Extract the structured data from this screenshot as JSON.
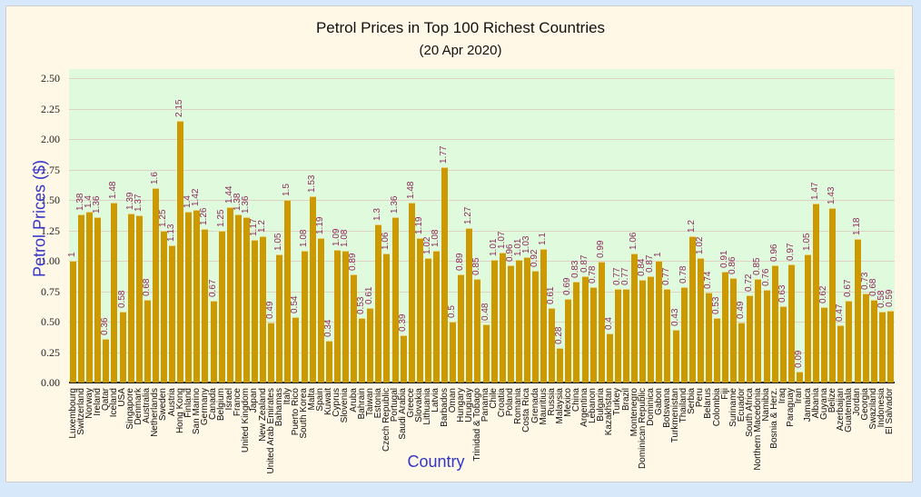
{
  "chart_data": {
    "type": "bar",
    "title": "Petrol Prices in Top 100 Richest Countries",
    "subtitle": "(20 Apr 2020)",
    "xlabel": "Country",
    "ylabel": "Petrol Prices ($)",
    "ylim": [
      0,
      2.5
    ],
    "yticks": [
      "0.00",
      "0.25",
      "0.50",
      "0.75",
      "1.00",
      "1.25",
      "1.50",
      "1.75",
      "2.00",
      "2.25",
      "2.50"
    ],
    "grid": true,
    "legend": "none",
    "bar_color": "#cc9900",
    "value_label_color": "#8e2a5e",
    "axis_title_color": "#3535c8",
    "plot_background": "#dffadc",
    "categories": [
      "Luxembourg",
      "Switzerland",
      "Norway",
      "Ireland",
      "Qatar",
      "Iceland",
      "USA",
      "Singapore",
      "Denmark",
      "Australia",
      "Netherlands",
      "Sweden",
      "Austria",
      "Hong Kong",
      "Finland",
      "San Marino",
      "Germany",
      "Canada",
      "Belgium",
      "Israel",
      "France",
      "United Kingdom",
      "Japan",
      "New Zealand",
      "United Arab Emirates",
      "Bahamas",
      "Italy",
      "Puerto Rico",
      "South Korea",
      "Malta",
      "Spain",
      "Kuwait",
      "Cyprus",
      "Slovenia",
      "Aruba",
      "Bahrain",
      "Taiwan",
      "Estonia",
      "Czech Republic",
      "Portugal",
      "Saudi Arabia",
      "Greece",
      "Slovakia",
      "Lithuania",
      "Latvia",
      "Barbados",
      "Oman",
      "Hungary",
      "Uruguay",
      "Trinidad & Tobago",
      "Panama",
      "Chile",
      "Croatia",
      "Poland",
      "Romania",
      "Costa Rica",
      "Grenada",
      "Mauritius",
      "Russia",
      "Malaysia",
      "Mexico",
      "China",
      "Argentina",
      "Lebanon",
      "Bulgaria",
      "Kazakhstan",
      "Turkey",
      "Brazil",
      "Montenegro",
      "Dominican Republic",
      "Dominica",
      "Gabon",
      "Botswana",
      "Turkmenistan",
      "Thailand",
      "Serbia",
      "Peru",
      "Belarus",
      "Colombia",
      "Fiji",
      "Suriname",
      "Ecuador",
      "South Africa",
      "Northern Macedonia",
      "Namibia",
      "Bosnia & Herz.",
      "Iraq",
      "Paraguay",
      "Iran",
      "Jamaica",
      "Albania",
      "Guyana",
      "Belize",
      "Azerbaijan",
      "Guatemala",
      "Jordan",
      "Georgia",
      "Swaziland",
      "Indonesia",
      "El Salvador"
    ],
    "values": [
      1,
      1.38,
      1.4,
      1.36,
      0.36,
      1.48,
      0.58,
      1.39,
      1.37,
      0.68,
      1.6,
      1.25,
      1.13,
      2.15,
      1.4,
      1.42,
      1.26,
      0.67,
      1.25,
      1.44,
      1.38,
      1.36,
      1.17,
      1.2,
      0.49,
      1.05,
      1.5,
      0.54,
      1.08,
      1.53,
      1.19,
      0.34,
      1.09,
      1.08,
      0.89,
      0.53,
      0.61,
      1.3,
      1.06,
      1.36,
      0.39,
      1.48,
      1.19,
      1.02,
      1.08,
      1.77,
      0.5,
      0.89,
      1.27,
      0.85,
      0.48,
      1.01,
      1.07,
      0.96,
      1.01,
      1.03,
      0.92,
      1.1,
      0.61,
      0.28,
      0.69,
      0.83,
      0.87,
      0.78,
      0.99,
      0.4,
      0.77,
      0.77,
      1.06,
      0.84,
      0.87,
      1,
      0.77,
      0.43,
      0.78,
      1.2,
      1.02,
      0.74,
      0.53,
      0.91,
      0.86,
      0.49,
      0.72,
      0.85,
      0.76,
      0.96,
      0.63,
      0.97,
      0.09,
      1.05,
      1.47,
      0.62,
      1.43,
      0.47,
      0.67,
      1.18,
      0.73,
      0.68,
      0.58,
      0.59
    ]
  }
}
